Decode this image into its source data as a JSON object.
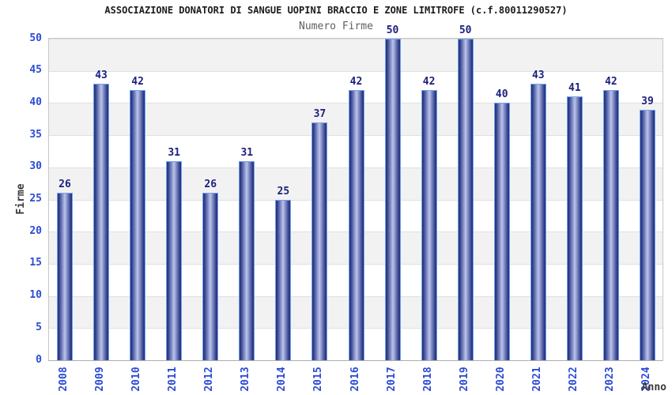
{
  "chart_data": {
    "type": "bar",
    "title": "ASSOCIAZIONE DONATORI DI SANGUE UOPINI BRACCIO E ZONE LIMITROFE (c.f.80011290527)",
    "subtitle": "Numero Firme",
    "xlabel": "Anno",
    "ylabel": "Firme",
    "categories": [
      "2008",
      "2009",
      "2010",
      "2011",
      "2012",
      "2013",
      "2014",
      "2015",
      "2016",
      "2017",
      "2018",
      "2019",
      "2020",
      "2021",
      "2022",
      "2023",
      "2024"
    ],
    "values": [
      26,
      43,
      42,
      31,
      26,
      31,
      25,
      37,
      42,
      50,
      42,
      50,
      40,
      43,
      41,
      42,
      39
    ],
    "ylim": [
      0,
      50
    ],
    "ytick_step": 5,
    "yticks": [
      0,
      5,
      10,
      15,
      20,
      25,
      30,
      35,
      40,
      45,
      50
    ],
    "legend": null,
    "grid": "alternating-horizontal-bands",
    "colors": {
      "bar_edge": "#222d7a",
      "bar_center": "#bcc4ec",
      "bar_outline": "#6fa3f2",
      "tick_label": "#2d4bd2",
      "value_label": "#1b1f7e",
      "band_gray": "#f2f2f2",
      "band_white": "#ffffff",
      "title": "#1c1c1c",
      "subtitle": "#5f5f5f",
      "axis_label": "#3a3a3a",
      "plot_border": "#c6c6c6"
    }
  }
}
